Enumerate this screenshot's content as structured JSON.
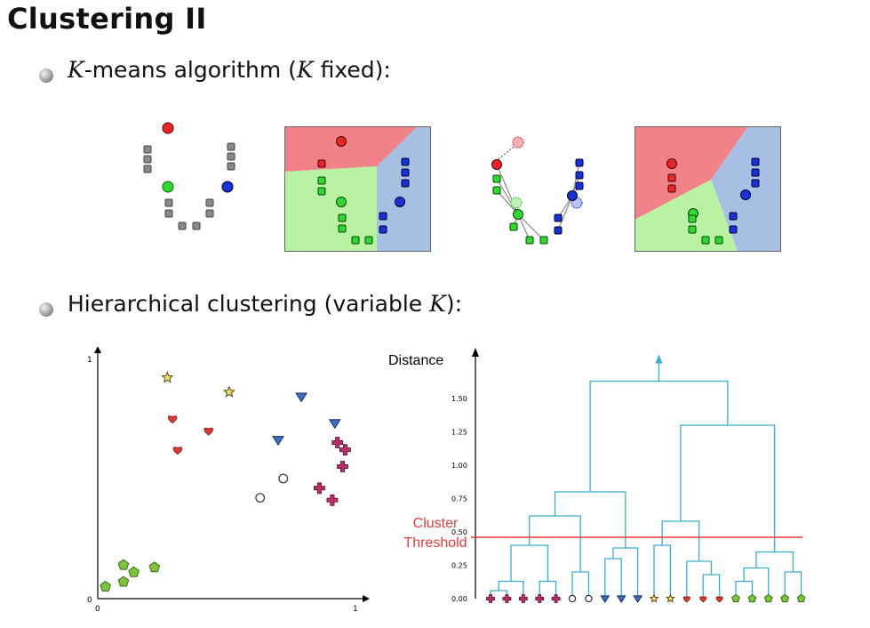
{
  "slide": {
    "title": "Clustering II",
    "bullet1": {
      "var": "K",
      "mid": "-means algorithm (",
      "var2": "K",
      "end": " fixed):"
    },
    "bullet2": {
      "start": "Hierarchical clustering (variable ",
      "var": "K",
      "end": "):"
    }
  },
  "colors": {
    "red": "#e8262a",
    "green": "#33d635",
    "blue": "#1733d8",
    "gray": "#8a8a8a",
    "cyan": "#3aaed0",
    "threshold": "#e63b3b",
    "pent": "#7cc43b",
    "heart": "#d83b33",
    "star": "#b8a033",
    "tri": "#3b6ec4",
    "plus": "#b83068"
  },
  "kmeans_panels": [
    "initial-centroids",
    "assignment-regions",
    "centroid-update",
    "reassignment-regions"
  ],
  "scatter": {
    "x_ticks": [
      "0",
      "1"
    ],
    "y_ticks": [
      "1"
    ],
    "points": [
      {
        "shape": "pentagon",
        "x": 0.03,
        "y": 0.05
      },
      {
        "shape": "pentagon",
        "x": 0.1,
        "y": 0.07
      },
      {
        "shape": "pentagon",
        "x": 0.14,
        "y": 0.11
      },
      {
        "shape": "pentagon",
        "x": 0.1,
        "y": 0.14
      },
      {
        "shape": "pentagon",
        "x": 0.22,
        "y": 0.13
      },
      {
        "shape": "star",
        "x": 0.27,
        "y": 0.92
      },
      {
        "shape": "star",
        "x": 0.51,
        "y": 0.86
      },
      {
        "shape": "heart",
        "x": 0.29,
        "y": 0.75
      },
      {
        "shape": "heart",
        "x": 0.43,
        "y": 0.7
      },
      {
        "shape": "heart",
        "x": 0.31,
        "y": 0.62
      },
      {
        "shape": "triangle",
        "x": 0.79,
        "y": 0.84
      },
      {
        "shape": "triangle",
        "x": 0.92,
        "y": 0.73
      },
      {
        "shape": "triangle",
        "x": 0.7,
        "y": 0.66
      },
      {
        "shape": "circle",
        "x": 0.72,
        "y": 0.5
      },
      {
        "shape": "circle",
        "x": 0.63,
        "y": 0.42
      },
      {
        "shape": "plus",
        "x": 0.93,
        "y": 0.65
      },
      {
        "shape": "plus",
        "x": 0.96,
        "y": 0.62
      },
      {
        "shape": "plus",
        "x": 0.95,
        "y": 0.55
      },
      {
        "shape": "plus",
        "x": 0.86,
        "y": 0.46
      },
      {
        "shape": "plus",
        "x": 0.91,
        "y": 0.41
      }
    ]
  },
  "dendrogram": {
    "ylabel": "Distance",
    "y_ticks": [
      0.0,
      0.25,
      0.5,
      0.75,
      1.0,
      1.25,
      1.5
    ],
    "y_tick_labels": [
      "0.00",
      "0.25",
      "0.50",
      "0.75",
      "1.00",
      "1.25",
      "1.50"
    ],
    "threshold": 0.46,
    "threshold_label": [
      "Cluster",
      "Threshold"
    ],
    "leaves": [
      "plus",
      "plus",
      "plus",
      "plus",
      "plus",
      "circle",
      "circle",
      "triangle",
      "triangle",
      "triangle",
      "star",
      "star",
      "heart",
      "heart",
      "heart",
      "pentagon",
      "pentagon",
      "pentagon",
      "pentagon",
      "pentagon"
    ],
    "merges": [
      [
        0,
        1,
        0.06
      ],
      [
        20,
        2,
        0.13
      ],
      [
        3,
        4,
        0.13
      ],
      [
        21,
        22,
        0.4
      ],
      [
        5,
        6,
        0.2
      ],
      [
        23,
        24,
        0.62
      ],
      [
        7,
        8,
        0.3
      ],
      [
        26,
        9,
        0.38
      ],
      [
        25,
        27,
        0.8
      ],
      [
        10,
        11,
        0.4
      ],
      [
        13,
        14,
        0.18
      ],
      [
        12,
        30,
        0.28
      ],
      [
        29,
        31,
        0.58
      ],
      [
        15,
        16,
        0.13
      ],
      [
        17,
        33,
        0.23
      ],
      [
        18,
        19,
        0.2
      ],
      [
        34,
        35,
        0.35
      ],
      [
        32,
        36,
        1.3
      ],
      [
        28,
        37,
        1.63
      ]
    ]
  }
}
